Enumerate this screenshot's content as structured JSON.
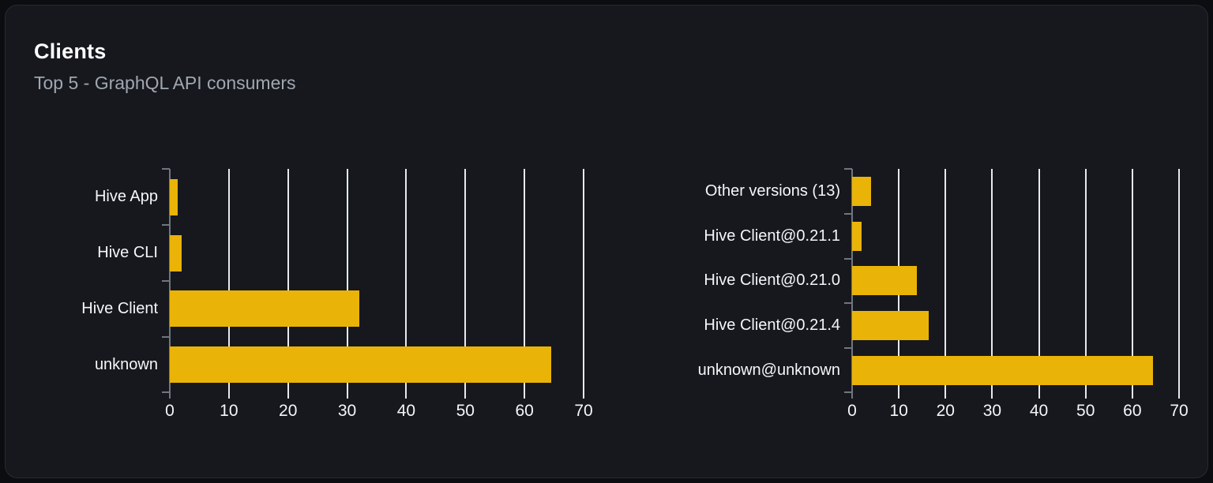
{
  "card": {
    "title": "Clients",
    "subtitle": "Top 5 - GraphQL API consumers"
  },
  "colors": {
    "bar": "#eab308",
    "grid": "#e6e9ed",
    "axis": "#6f7680",
    "title": "#ffffff",
    "subtitle": "#a1a7b0",
    "label": "#f5f6f8",
    "card_bg": "#16181e",
    "page_bg": "#0c0d11",
    "border": "#262a31"
  },
  "chart_data": [
    {
      "type": "bar",
      "orientation": "horizontal",
      "name": "clients-by-name",
      "categories": [
        "Hive App",
        "Hive CLI",
        "Hive Client",
        "unknown"
      ],
      "values": [
        1.3,
        2,
        32,
        64.5
      ],
      "xlim": [
        0,
        70
      ],
      "xticks": [
        0,
        10,
        20,
        30,
        40,
        50,
        60,
        70
      ],
      "grid": true,
      "legend": false,
      "bar_color": "#eab308"
    },
    {
      "type": "bar",
      "orientation": "horizontal",
      "name": "clients-by-version",
      "categories": [
        "Other versions (13)",
        "Hive Client@0.21.1",
        "Hive Client@0.21.0",
        "Hive Client@0.21.4",
        "unknown@unknown"
      ],
      "values": [
        4,
        2,
        13.8,
        16.4,
        64.5
      ],
      "xlim": [
        0,
        70
      ],
      "xticks": [
        0,
        10,
        20,
        30,
        40,
        50,
        60,
        70
      ],
      "grid": true,
      "legend": false,
      "bar_color": "#eab308"
    }
  ]
}
